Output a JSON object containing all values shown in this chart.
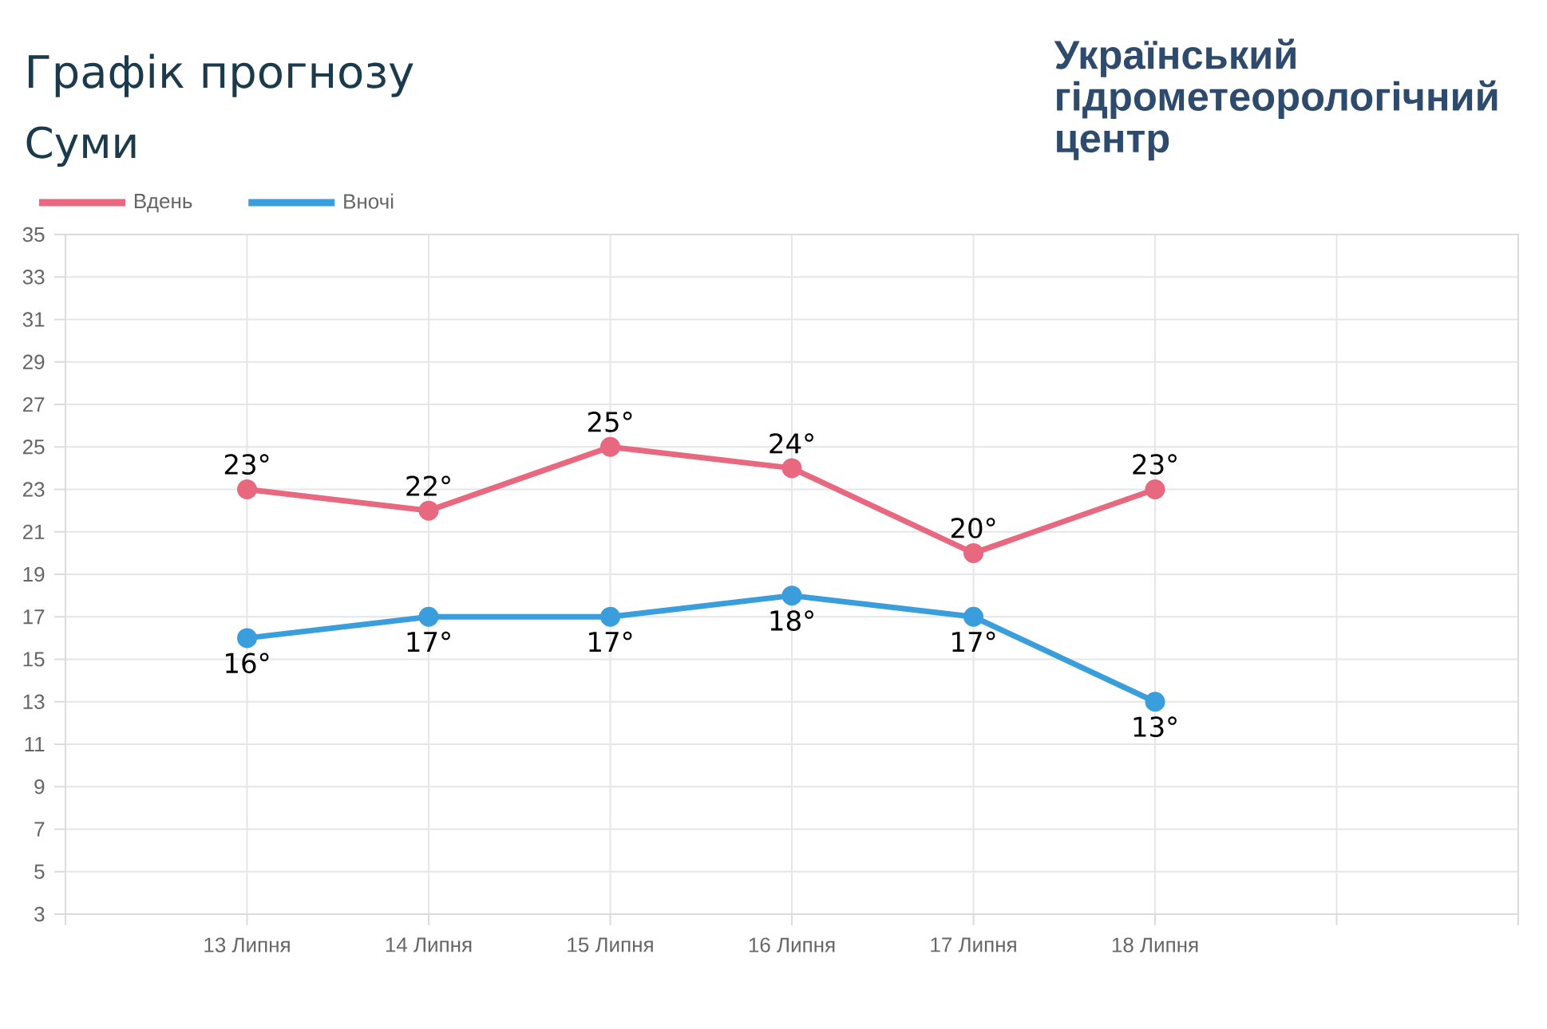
{
  "chart_data": {
    "type": "line",
    "title": "Графік прогнозу",
    "subtitle": "Суми",
    "annotations": [
      "Український гідрометеорологічний центр"
    ],
    "categories": [
      null,
      "13 Липня",
      "14 Липня",
      "15 Липня",
      "16 Липня",
      "17 Липня",
      "18 Липня",
      null,
      null
    ],
    "series": [
      {
        "name": "Вдень",
        "color": "#e8687f",
        "values": [
          null,
          23,
          22,
          25,
          24,
          20,
          23,
          null,
          null
        ],
        "value_labels": [
          null,
          "23°",
          "22°",
          "25°",
          "24°",
          "20°",
          "23°",
          null,
          null
        ]
      },
      {
        "name": "Вночі",
        "color": "#3a9edc",
        "values": [
          null,
          16,
          17,
          17,
          18,
          17,
          13,
          null,
          null
        ],
        "value_labels": [
          null,
          "16°",
          "17°",
          "17°",
          "18°",
          "17°",
          "13°",
          null,
          null
        ]
      }
    ],
    "ylim": [
      3,
      35
    ],
    "yticks": [
      3,
      5,
      7,
      9,
      11,
      13,
      15,
      17,
      19,
      21,
      23,
      25,
      27,
      29,
      31,
      33,
      35
    ],
    "grid": true,
    "legend": "top left",
    "marker": "circle",
    "line_style": "solid"
  }
}
